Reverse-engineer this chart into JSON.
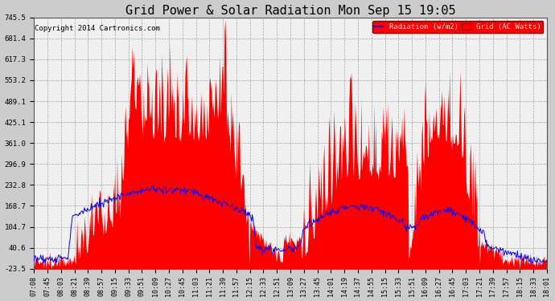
{
  "title": "Grid Power & Solar Radiation Mon Sep 15 19:05",
  "copyright": "Copyright 2014 Cartronics.com",
  "legend_labels": [
    "Radiation (w/m2)",
    "Grid (AC Watts)"
  ],
  "legend_colors": [
    "blue",
    "red"
  ],
  "ylim": [
    -23.5,
    745.5
  ],
  "yticks": [
    -23.5,
    40.6,
    104.7,
    168.7,
    232.8,
    296.9,
    361.0,
    425.1,
    489.1,
    553.2,
    617.3,
    681.4,
    745.5
  ],
  "title_fontsize": 11,
  "x_labels": [
    "07:08",
    "07:45",
    "08:03",
    "08:21",
    "08:39",
    "08:57",
    "09:15",
    "09:33",
    "09:51",
    "10:09",
    "10:27",
    "10:45",
    "11:03",
    "11:21",
    "11:39",
    "11:57",
    "12:15",
    "12:33",
    "12:51",
    "13:09",
    "13:27",
    "13:45",
    "14:01",
    "14:19",
    "14:37",
    "14:55",
    "15:15",
    "15:33",
    "15:51",
    "16:09",
    "16:27",
    "16:45",
    "17:03",
    "17:21",
    "17:39",
    "17:57",
    "18:15",
    "18:33",
    "18:01"
  ]
}
